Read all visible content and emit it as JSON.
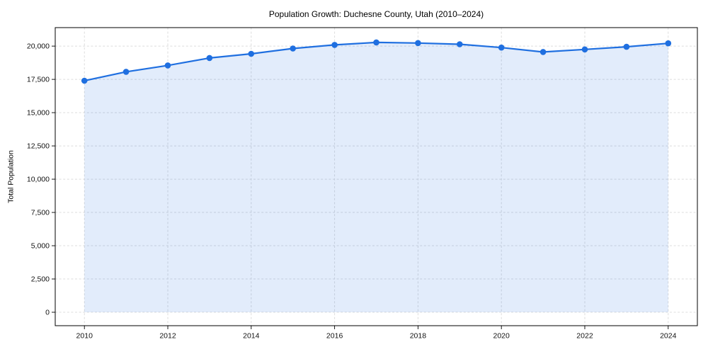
{
  "chart_data": {
    "type": "line",
    "title": "Population Growth: Duchesne County, Utah (2010–2024)",
    "xlabel": "",
    "ylabel": "Total Population",
    "x": [
      2010,
      2011,
      2012,
      2013,
      2014,
      2015,
      2016,
      2017,
      2018,
      2019,
      2020,
      2021,
      2022,
      2023,
      2024
    ],
    "series": [
      {
        "name": "Total Population",
        "values": [
          17400,
          18070,
          18550,
          19110,
          19420,
          19820,
          20090,
          20280,
          20230,
          20140,
          19890,
          19560,
          19750,
          19950,
          20210
        ]
      }
    ],
    "xticks": [
      2010,
      2012,
      2014,
      2016,
      2018,
      2020,
      2022,
      2024
    ],
    "yticks": [
      0,
      2500,
      5000,
      7500,
      10000,
      12500,
      15000,
      17500,
      20000
    ],
    "xlim": [
      2009.3,
      2024.7
    ],
    "ylim": [
      -1010,
      21390
    ],
    "grid": true,
    "legend_position": "none",
    "marker": "circle",
    "line_color": "#1f6fe0",
    "area_fill_color": "rgba(31, 111, 224, 0.13)",
    "grid_color": "#dcdcdc",
    "axis_color": "#000000",
    "background_color": "#ffffff",
    "area_fills_to": 0
  }
}
